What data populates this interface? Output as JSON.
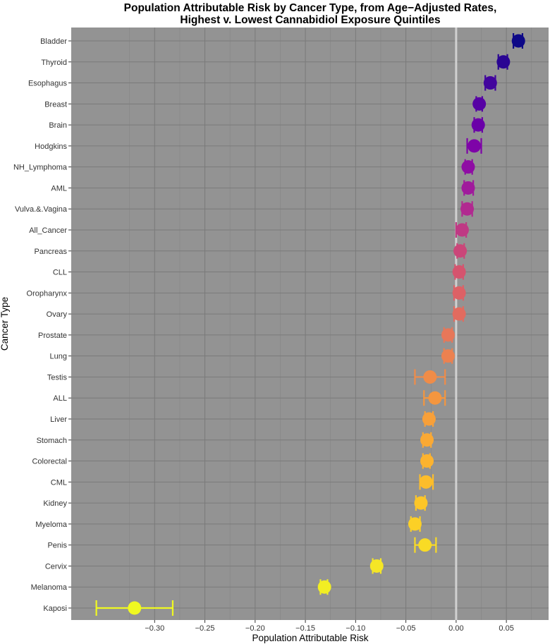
{
  "chart_data": {
    "type": "scatter",
    "title_line1": "Population Attributable Risk by Cancer Type, from Age−Adjusted Rates,",
    "title_line2": "Highest v. Lowest Cannabidiol Exposure Quintiles",
    "xlabel": "Population Attributable Risk",
    "ylabel": "Cancer Type",
    "xlim": [
      -0.383,
      0.092
    ],
    "xticks": [
      -0.3,
      -0.25,
      -0.2,
      -0.15,
      -0.1,
      -0.05,
      0.0,
      0.05
    ],
    "xtick_labels": [
      "−0.30",
      "−0.25",
      "−0.20",
      "−0.15",
      "−0.10",
      "−0.05",
      "0.00",
      "0.05"
    ],
    "reference_line_x": 0,
    "grid": true,
    "series": [
      {
        "name": "Bladder",
        "value": 0.062,
        "lo": 0.057,
        "hi": 0.066,
        "color": "#0d0887"
      },
      {
        "name": "Thyroid",
        "value": 0.047,
        "lo": 0.042,
        "hi": 0.051,
        "color": "#2a0593"
      },
      {
        "name": "Esophagus",
        "value": 0.034,
        "lo": 0.029,
        "hi": 0.039,
        "color": "#41049d"
      },
      {
        "name": "Breast",
        "value": 0.023,
        "lo": 0.02,
        "hi": 0.026,
        "color": "#5601a4"
      },
      {
        "name": "Brain",
        "value": 0.022,
        "lo": 0.018,
        "hi": 0.026,
        "color": "#6a00a8"
      },
      {
        "name": "Hodgkins",
        "value": 0.018,
        "lo": 0.011,
        "hi": 0.025,
        "color": "#7e03a8"
      },
      {
        "name": "NH_Lymphoma",
        "value": 0.012,
        "lo": 0.009,
        "hi": 0.016,
        "color": "#8f0da4"
      },
      {
        "name": "AML",
        "value": 0.012,
        "lo": 0.008,
        "hi": 0.017,
        "color": "#a01a9c"
      },
      {
        "name": "Vulva.&.Vagina",
        "value": 0.011,
        "lo": 0.006,
        "hi": 0.016,
        "color": "#b12a90"
      },
      {
        "name": "All_Cancer",
        "value": 0.006,
        "lo": 0.0,
        "hi": 0.01,
        "color": "#bf3984"
      },
      {
        "name": "Pancreas",
        "value": 0.004,
        "lo": 0.001,
        "hi": 0.008,
        "color": "#cb4679"
      },
      {
        "name": "CLL",
        "value": 0.003,
        "lo": -0.001,
        "hi": 0.007,
        "color": "#d5546e"
      },
      {
        "name": "Oropharynx",
        "value": 0.003,
        "lo": -0.002,
        "hi": 0.007,
        "color": "#dd6166"
      },
      {
        "name": "Ovary",
        "value": 0.003,
        "lo": -0.002,
        "hi": 0.007,
        "color": "#e26b5f"
      },
      {
        "name": "Prostate",
        "value": -0.008,
        "lo": -0.012,
        "hi": -0.004,
        "color": "#e77759"
      },
      {
        "name": "Lung",
        "value": -0.008,
        "lo": -0.012,
        "hi": -0.004,
        "color": "#ec8150"
      },
      {
        "name": "Testis",
        "value": -0.026,
        "lo": -0.041,
        "hi": -0.011,
        "color": "#f08c48"
      },
      {
        "name": "ALL",
        "value": -0.021,
        "lo": -0.032,
        "hi": -0.011,
        "color": "#f4963f"
      },
      {
        "name": "Liver",
        "value": -0.027,
        "lo": -0.031,
        "hi": -0.023,
        "color": "#f8a039"
      },
      {
        "name": "Stomach",
        "value": -0.029,
        "lo": -0.033,
        "hi": -0.025,
        "color": "#faa934"
      },
      {
        "name": "Colorectal",
        "value": -0.029,
        "lo": -0.033,
        "hi": -0.026,
        "color": "#fcb32f"
      },
      {
        "name": "CML",
        "value": -0.03,
        "lo": -0.036,
        "hi": -0.023,
        "color": "#fcbd2b"
      },
      {
        "name": "Kidney",
        "value": -0.035,
        "lo": -0.04,
        "hi": -0.031,
        "color": "#fdc628"
      },
      {
        "name": "Myeloma",
        "value": -0.041,
        "lo": -0.045,
        "hi": -0.036,
        "color": "#fcd026"
      },
      {
        "name": "Penis",
        "value": -0.031,
        "lo": -0.041,
        "hi": -0.02,
        "color": "#f9db25"
      },
      {
        "name": "Cervix",
        "value": -0.079,
        "lo": -0.083,
        "hi": -0.075,
        "color": "#f5e626"
      },
      {
        "name": "Melanoma",
        "value": -0.131,
        "lo": -0.135,
        "hi": -0.128,
        "color": "#f2ee23"
      },
      {
        "name": "Kaposi",
        "value": -0.32,
        "lo": -0.358,
        "hi": -0.282,
        "color": "#f0f921"
      }
    ]
  }
}
